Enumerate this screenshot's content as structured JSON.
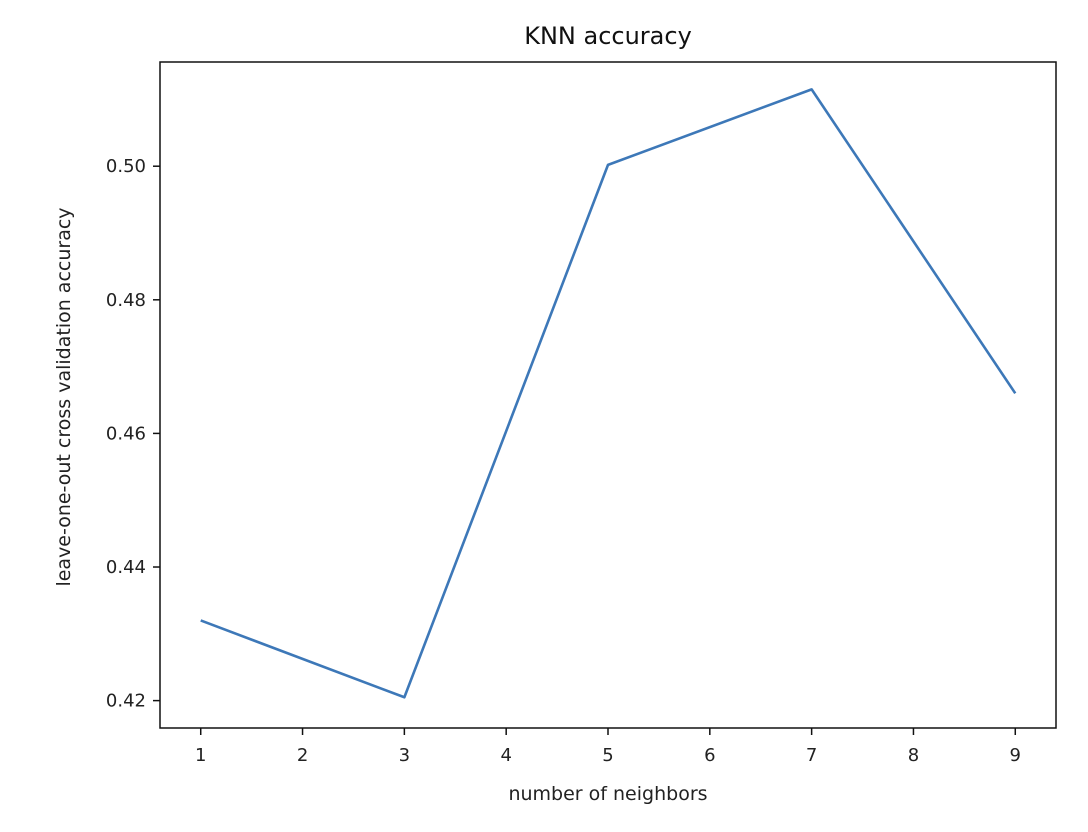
{
  "chart_data": {
    "type": "line",
    "title": "KNN accuracy",
    "xlabel": "number of neighbors",
    "ylabel": "leave-one-out cross validation accuracy",
    "x": [
      1,
      3,
      5,
      7,
      9
    ],
    "series": [
      {
        "values": [
          0.432,
          0.4205,
          0.5002,
          0.5115,
          0.466
        ],
        "color": "#3d78b8"
      }
    ],
    "xticks": [
      1,
      2,
      3,
      4,
      5,
      6,
      7,
      8,
      9
    ],
    "xtick_labels": [
      "1",
      "2",
      "3",
      "4",
      "5",
      "6",
      "7",
      "8",
      "9"
    ],
    "yticks": [
      0.42,
      0.44,
      0.46,
      0.48,
      0.5
    ],
    "ytick_labels": [
      "0.42",
      "0.44",
      "0.46",
      "0.48",
      "0.50"
    ],
    "xlim": [
      0.6,
      9.4
    ],
    "ylim": [
      0.4159,
      0.5156
    ],
    "grid": false,
    "legend": "none"
  }
}
